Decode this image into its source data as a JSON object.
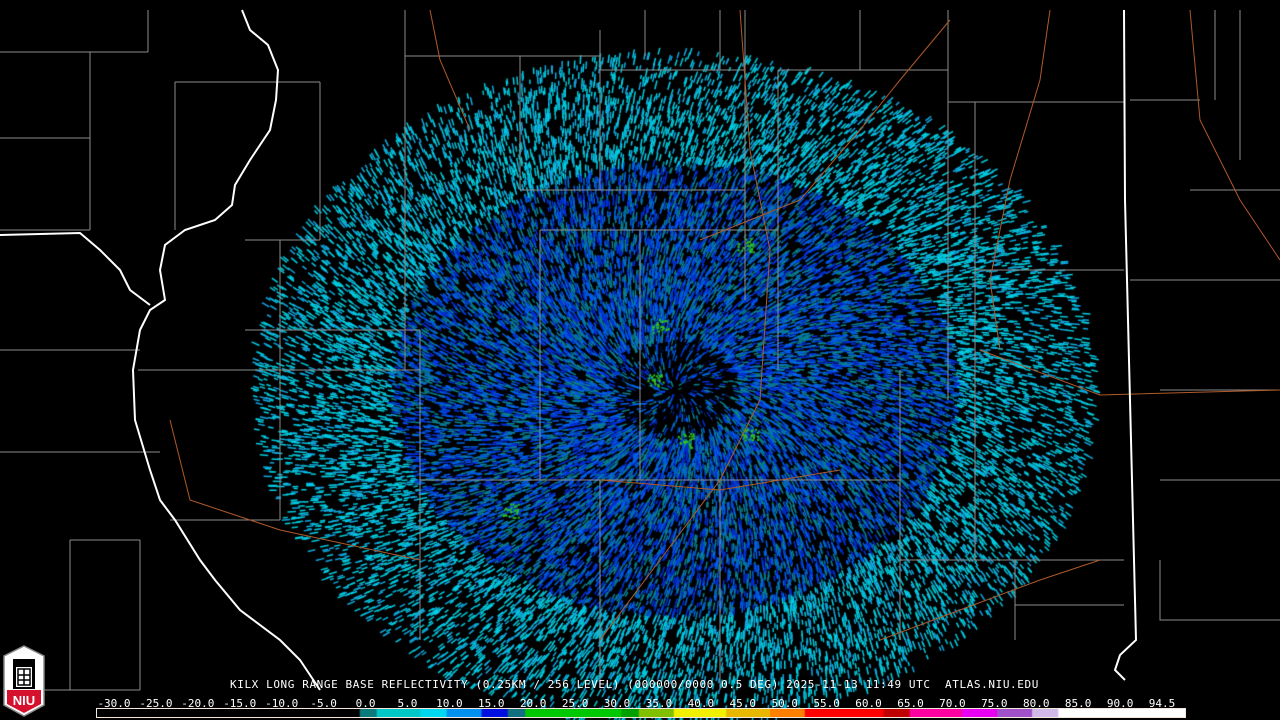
{
  "product_title": "KILX LONG RANGE BASE REFLECTIVITY (0.25KM / 256 LEVEL) (000000/0000 0.5 DEG) 2025-11-13 11:49 UTC  ATLAS.NIU.EDU",
  "logo": {
    "text": "NIU",
    "colors": {
      "red": "#d6112d",
      "white": "#ffffff",
      "gray": "#888888"
    }
  },
  "colorbar": {
    "unit_ticks": [
      "-30.0",
      "-25.0",
      "-20.0",
      "-15.0",
      "-10.0",
      "-5.0",
      "0.0",
      "5.0",
      "10.0",
      "15.0",
      "20.0",
      "25.0",
      "30.0",
      "35.0",
      "40.0",
      "45.0",
      "50.0",
      "55.0",
      "60.0",
      "65.0",
      "70.0",
      "75.0",
      "80.0",
      "85.0",
      "90.0",
      "94.5"
    ],
    "range": [
      -30,
      94.5
    ],
    "stops": [
      {
        "value": -30,
        "color": "#000000"
      },
      {
        "value": -2,
        "color": "#000000"
      },
      {
        "value": 0,
        "color": "#0a2a2a"
      },
      {
        "value": 0.1,
        "color": "#0a7a7a"
      },
      {
        "value": 2,
        "color": "#00c8c8"
      },
      {
        "value": 7,
        "color": "#00d8f0"
      },
      {
        "value": 10,
        "color": "#0090f0"
      },
      {
        "value": 14,
        "color": "#0010e0"
      },
      {
        "value": 17,
        "color": "#107080"
      },
      {
        "value": 19,
        "color": "#00c800"
      },
      {
        "value": 30,
        "color": "#00a000"
      },
      {
        "value": 32,
        "color": "#80c000"
      },
      {
        "value": 36,
        "color": "#f0f000"
      },
      {
        "value": 42,
        "color": "#e8b800"
      },
      {
        "value": 47,
        "color": "#ff8000"
      },
      {
        "value": 51,
        "color": "#ff0000"
      },
      {
        "value": 60,
        "color": "#c00000"
      },
      {
        "value": 63,
        "color": "#ff00a0"
      },
      {
        "value": 69,
        "color": "#e800f0"
      },
      {
        "value": 73,
        "color": "#a050c8"
      },
      {
        "value": 77,
        "color": "#d0b8e8"
      },
      {
        "value": 80,
        "color": "#ffffff"
      },
      {
        "value": 94.5,
        "color": "#ffffff"
      }
    ]
  },
  "map_colors": {
    "state_border": "#ffffff",
    "county_border": "#8c8c8c",
    "roads": "#b05a2a"
  }
}
